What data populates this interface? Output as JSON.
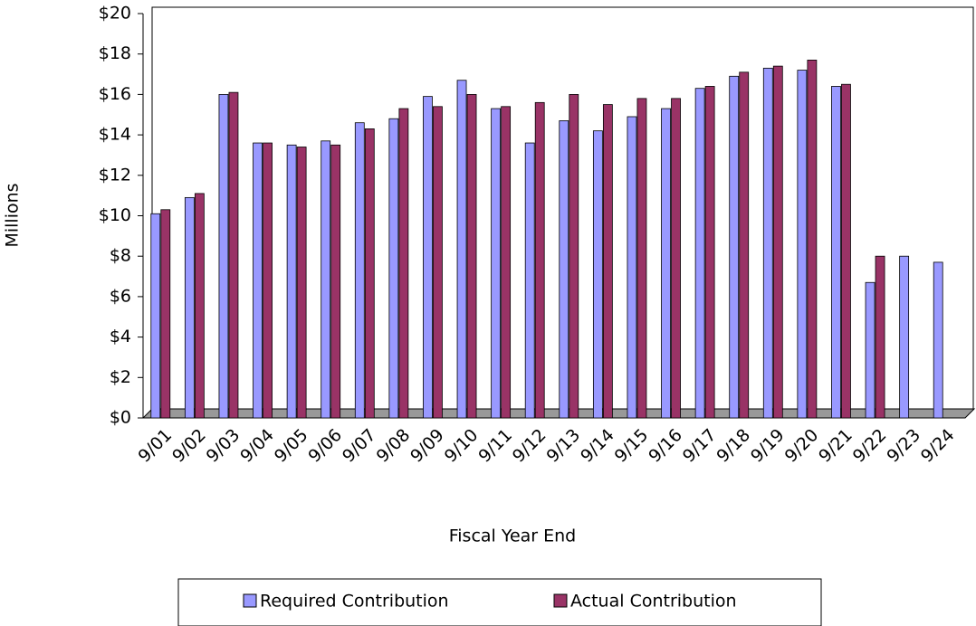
{
  "chart_data": {
    "type": "bar",
    "x_label": "Fiscal Year End",
    "y_label": "Millions",
    "categories": [
      "9/01",
      "9/02",
      "9/03",
      "9/04",
      "9/05",
      "9/06",
      "9/07",
      "9/08",
      "9/09",
      "9/10",
      "9/11",
      "9/12",
      "9/13",
      "9/14",
      "9/15",
      "9/16",
      "9/17",
      "9/18",
      "9/19",
      "9/20",
      "9/21",
      "9/22",
      "9/23",
      "9/24"
    ],
    "series": [
      {
        "name": "Required Contribution",
        "color": "#9999ff",
        "values": [
          10.1,
          10.9,
          16.0,
          13.6,
          13.5,
          13.7,
          14.6,
          14.8,
          15.9,
          16.7,
          15.3,
          13.6,
          14.7,
          14.2,
          14.9,
          15.3,
          16.3,
          16.9,
          17.3,
          17.2,
          16.4,
          6.7,
          8.0,
          7.7
        ]
      },
      {
        "name": "Actual Contribution",
        "color": "#993366",
        "values": [
          10.3,
          11.1,
          16.1,
          13.6,
          13.4,
          13.5,
          14.3,
          15.3,
          15.4,
          16.0,
          15.4,
          15.6,
          16.0,
          15.5,
          15.8,
          15.8,
          16.4,
          17.1,
          17.4,
          17.7,
          16.5,
          8.0,
          0,
          0
        ]
      }
    ],
    "ylim": [
      0,
      20
    ],
    "yticks": [
      {
        "value": 0,
        "label": "$0"
      },
      {
        "value": 2,
        "label": "$2"
      },
      {
        "value": 4,
        "label": "$4"
      },
      {
        "value": 6,
        "label": "$6"
      },
      {
        "value": 8,
        "label": "$8"
      },
      {
        "value": 10,
        "label": "$10"
      },
      {
        "value": 12,
        "label": "$12"
      },
      {
        "value": 14,
        "label": "$14"
      },
      {
        "value": 16,
        "label": "$16"
      },
      {
        "value": 18,
        "label": "$18"
      },
      {
        "value": 20,
        "label": "$20"
      }
    ],
    "legend": "bottom"
  }
}
